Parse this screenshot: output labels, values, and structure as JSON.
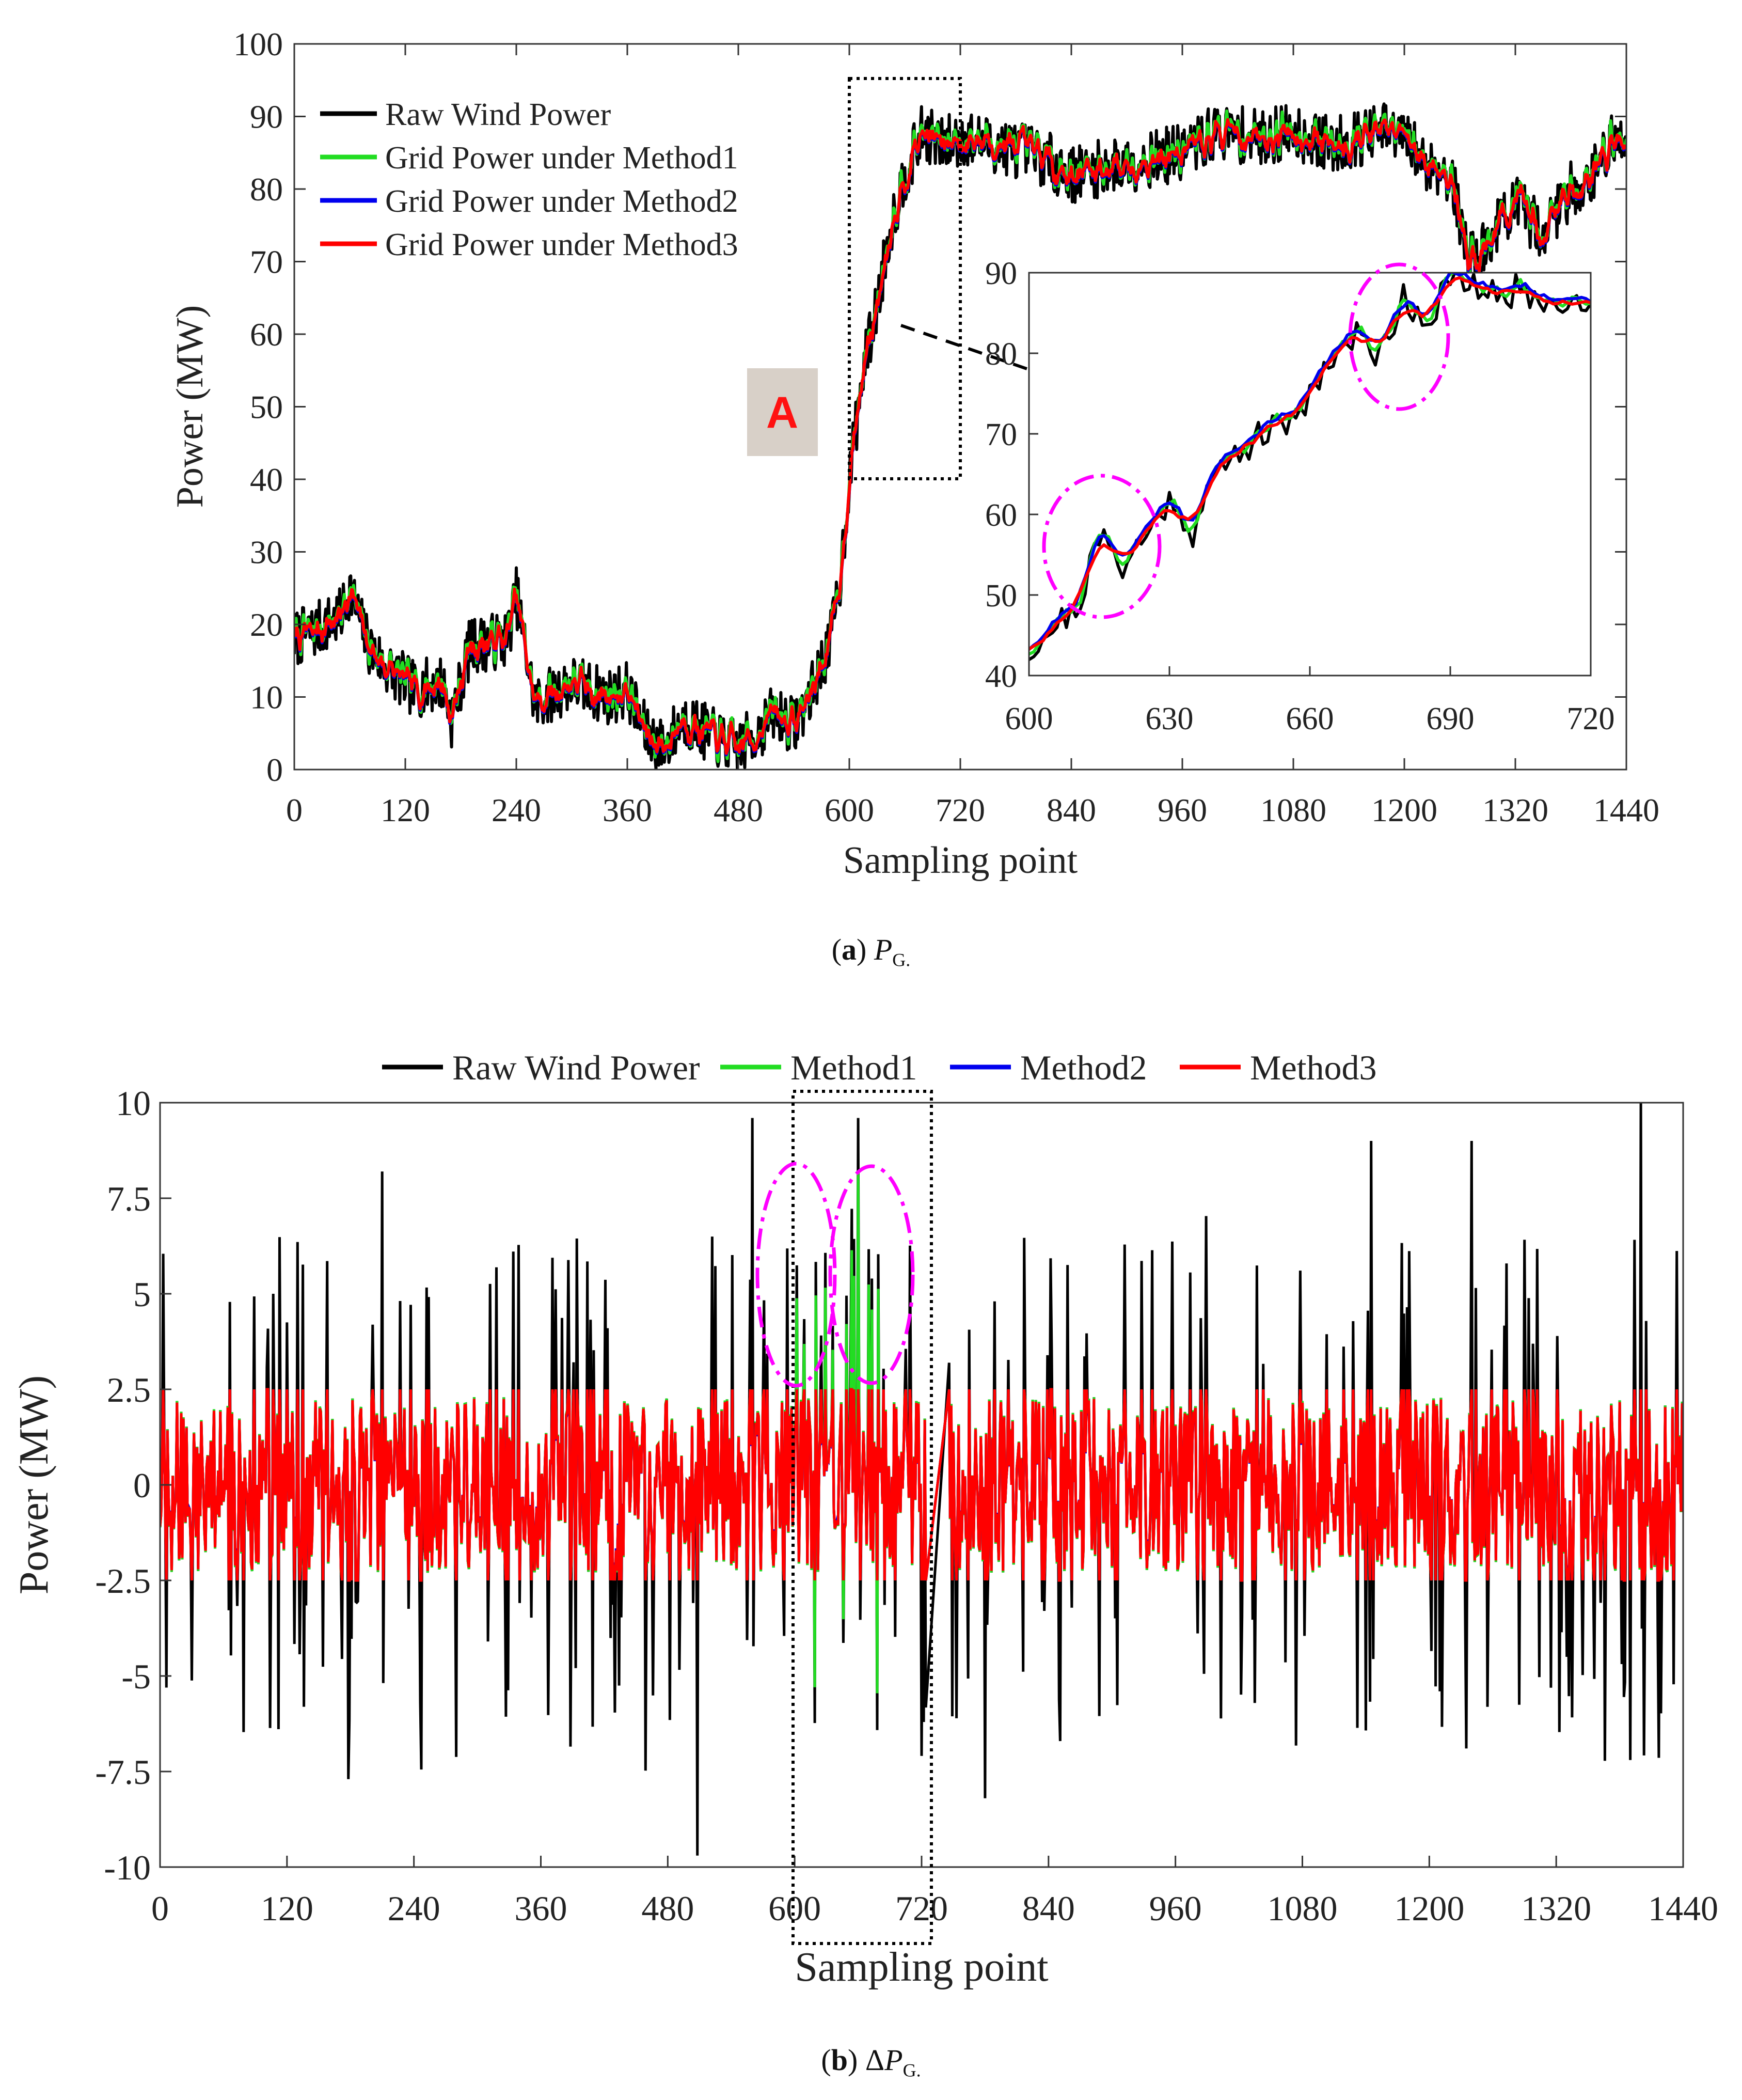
{
  "captions": {
    "a": {
      "letter": "a",
      "symbol": "P",
      "subscript": "G."
    },
    "b": {
      "letter": "b",
      "prefix": "Δ",
      "symbol": "P",
      "subscript": "G."
    }
  },
  "colors": {
    "raw": "#000000",
    "method1": "#22dd22",
    "method2": "#0000ee",
    "method3": "#ff0000",
    "ellipse": "#ff00ff",
    "callout_bg": "#d8d0c8",
    "callout_text": "#ff1111"
  },
  "chart_data": [
    {
      "id": "a",
      "type": "line",
      "title": "",
      "xlabel": "Sampling point",
      "ylabel": "Power (MW)",
      "xlim": [
        0,
        1440
      ],
      "ylim": [
        0,
        100
      ],
      "xticks": [
        "0",
        "120",
        "240",
        "360",
        "480",
        "600",
        "720",
        "840",
        "960",
        "1080",
        "1200",
        "1320",
        "1440"
      ],
      "yticks": [
        "0",
        "10",
        "20",
        "30",
        "40",
        "50",
        "60",
        "70",
        "80",
        "90",
        "100"
      ],
      "legend": [
        "Raw Wind Power",
        "Grid Power under Method1",
        "Grid Power under Method2",
        "Grid Power under Method3"
      ],
      "legend_position": "top-left",
      "series_profile": {
        "x": [
          0,
          20,
          50,
          60,
          80,
          100,
          130,
          160,
          170,
          190,
          230,
          240,
          260,
          300,
          340,
          360,
          380,
          400,
          420,
          460,
          480,
          500,
          520,
          540,
          560,
          580,
          590,
          600,
          615,
          630,
          645,
          660,
          680,
          700,
          720,
          760,
          800,
          840,
          880,
          920,
          960,
          1000,
          1040,
          1080,
          1120,
          1150,
          1180,
          1200,
          1220,
          1250,
          1270,
          1290,
          1300,
          1320,
          1350,
          1380,
          1400,
          1420,
          1440
        ],
        "y": [
          18,
          19,
          21,
          25,
          17,
          14,
          11,
          12,
          7,
          17,
          18,
          24,
          9,
          12,
          10,
          11,
          5,
          3,
          7,
          4,
          3,
          5,
          8,
          6,
          11,
          18,
          26,
          40,
          55,
          64,
          75,
          82,
          88,
          86,
          87,
          86,
          85,
          82,
          83,
          84,
          85,
          88,
          87,
          88,
          86,
          87,
          88,
          87,
          84,
          82,
          70,
          72,
          75,
          78,
          74,
          80,
          81,
          86,
          87
        ]
      },
      "highlight_box": {
        "label": "A",
        "x_range": [
          600,
          720
        ],
        "y_range": [
          40,
          95
        ]
      },
      "inset": {
        "xlim": [
          600,
          720
        ],
        "ylim": [
          40,
          90
        ],
        "xticks": [
          "600",
          "630",
          "660",
          "690",
          "720"
        ],
        "yticks": [
          "40",
          "50",
          "60",
          "70",
          "80",
          "90"
        ],
        "profile": {
          "x": [
            600,
            605,
            610,
            615,
            620,
            625,
            630,
            635,
            640,
            645,
            650,
            655,
            660,
            665,
            670,
            675,
            680,
            685,
            690,
            695,
            700,
            705,
            710,
            715,
            720
          ],
          "y": [
            43,
            46,
            48,
            57,
            54,
            57,
            62,
            58,
            65,
            68,
            70,
            71,
            75,
            80,
            82,
            80,
            87,
            84,
            89,
            88,
            87,
            88,
            86,
            87,
            86
          ]
        }
      }
    },
    {
      "id": "b",
      "type": "line",
      "title": "",
      "xlabel": "Sampling point",
      "ylabel": "Power (MW)",
      "xlim": [
        0,
        1440
      ],
      "ylim": [
        -10,
        10
      ],
      "xticks": [
        "0",
        "120",
        "240",
        "360",
        "480",
        "600",
        "720",
        "840",
        "960",
        "1080",
        "1200",
        "1320",
        "1440"
      ],
      "yticks": [
        "-10",
        "-7.5",
        "-5",
        "-2.5",
        "0",
        "2.5",
        "5",
        "7.5",
        "10"
      ],
      "legend": [
        "Raw Wind Power",
        "Method1",
        "Method2",
        "Method3"
      ],
      "legend_position": "top-center",
      "limit_band": [
        -2.5,
        2.5
      ],
      "gap_x_range": [
        725,
        745
      ],
      "notable_peaks": [
        {
          "x": 210,
          "y": 8.2
        },
        {
          "x": 178,
          "y": -7.7
        },
        {
          "x": 508,
          "y": -9.7
        },
        {
          "x": 560,
          "y": 9.6
        },
        {
          "x": 660,
          "y": 9.6
        },
        {
          "x": 1400,
          "y": 10.0
        },
        {
          "x": 1240,
          "y": 9.0
        },
        {
          "x": 1145,
          "y": 9.0
        },
        {
          "x": 1390,
          "y": -7.2
        },
        {
          "x": 780,
          "y": -8.2
        }
      ],
      "highlight_box": {
        "x_range": [
          600,
          730
        ],
        "y_range": [
          -10.5,
          10.2
        ]
      }
    }
  ]
}
